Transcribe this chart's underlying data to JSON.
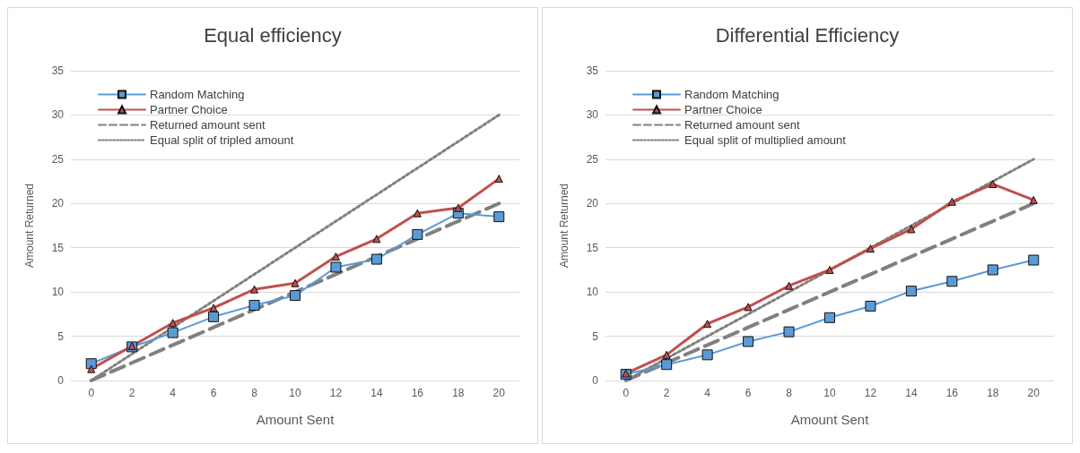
{
  "chart_data": [
    {
      "type": "line",
      "title": "Equal efficiency",
      "xlabel": "Amount Sent",
      "ylabel": "Amount Returned",
      "categories": [
        "0",
        "2",
        "4",
        "6",
        "8",
        "10",
        "12",
        "14",
        "16",
        "18",
        "20"
      ],
      "ylim": [
        0,
        35
      ],
      "yticks": [
        0,
        5,
        10,
        15,
        20,
        25,
        30,
        35
      ],
      "grid": "y",
      "legend": "top left",
      "series": [
        {
          "name": "Random Matching",
          "color": "#5b9bd5",
          "marker": "square",
          "line_style": "solid",
          "values": [
            1.9,
            3.8,
            5.4,
            7.2,
            8.5,
            9.6,
            12.8,
            13.7,
            16.5,
            18.9,
            18.5
          ]
        },
        {
          "name": "Partner Choice",
          "color": "#c0504d",
          "marker": "triangle",
          "line_style": "solid",
          "values": [
            1.3,
            3.9,
            6.5,
            8.2,
            10.3,
            11.0,
            14.0,
            16.0,
            18.9,
            19.5,
            22.8
          ]
        },
        {
          "name": "Returned amount sent",
          "color": "#808080",
          "marker": "none",
          "line_style": "dashed",
          "values": [
            0,
            2,
            4,
            6,
            8,
            10,
            12,
            14,
            16,
            18,
            20
          ]
        },
        {
          "name": "Equal split of tripled amount",
          "color": "#808080",
          "marker": "none",
          "line_style": "dotted",
          "values": [
            0,
            3,
            6,
            9,
            12,
            15,
            18,
            21,
            24,
            27,
            30
          ]
        }
      ]
    },
    {
      "type": "line",
      "title": "Differential Efficiency",
      "xlabel": "Amount Sent",
      "ylabel": "Amount Returned",
      "categories": [
        "0",
        "2",
        "4",
        "6",
        "8",
        "10",
        "12",
        "14",
        "16",
        "18",
        "20"
      ],
      "ylim": [
        0,
        35
      ],
      "yticks": [
        0,
        5,
        10,
        15,
        20,
        25,
        30,
        35
      ],
      "grid": "y",
      "legend": "top left",
      "series": [
        {
          "name": "Random Matching",
          "color": "#5b9bd5",
          "marker": "square",
          "line_style": "solid",
          "values": [
            0.7,
            1.8,
            2.9,
            4.4,
            5.5,
            7.1,
            8.4,
            10.1,
            11.2,
            12.5,
            13.6
          ]
        },
        {
          "name": "Partner Choice",
          "color": "#c0504d",
          "marker": "triangle",
          "line_style": "solid",
          "values": [
            0.8,
            2.9,
            6.4,
            8.3,
            10.7,
            12.5,
            14.9,
            17.1,
            20.2,
            22.2,
            20.4
          ]
        },
        {
          "name": "Returned amount sent",
          "color": "#808080",
          "marker": "none",
          "line_style": "dashed",
          "values": [
            0,
            2,
            4,
            6,
            8,
            10,
            12,
            14,
            16,
            18,
            20
          ]
        },
        {
          "name": "Equal split of multiplied amount",
          "color": "#808080",
          "marker": "none",
          "line_style": "dotted",
          "values": [
            0,
            2.5,
            5,
            7.5,
            10,
            12.5,
            15,
            17.5,
            20,
            22.5,
            25
          ]
        }
      ]
    }
  ]
}
